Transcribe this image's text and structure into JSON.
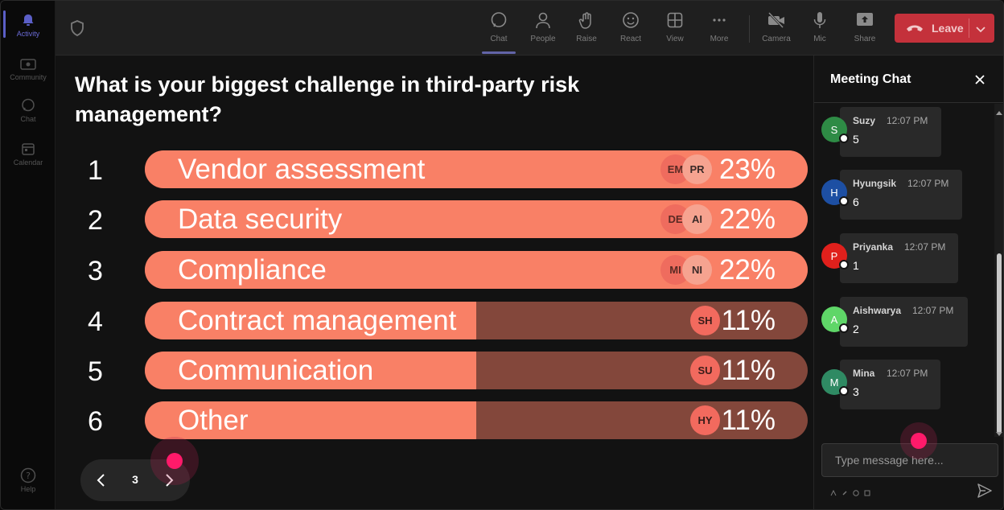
{
  "rail": {
    "items": [
      {
        "label": "Activity",
        "icon": "bell-icon",
        "active": true
      },
      {
        "label": "Community",
        "icon": "community-icon"
      },
      {
        "label": "Chat",
        "icon": "chat-bubble-icon"
      },
      {
        "label": "Calendar",
        "icon": "calendar-icon"
      }
    ],
    "help": {
      "label": "Help",
      "icon": "help-icon"
    }
  },
  "toolbar": {
    "buttons": [
      {
        "label": "Chat",
        "icon": "chat-icon",
        "active": true
      },
      {
        "label": "People",
        "icon": "people-icon"
      },
      {
        "label": "Raise",
        "icon": "raise-hand-icon"
      },
      {
        "label": "React",
        "icon": "smiley-icon"
      },
      {
        "label": "View",
        "icon": "grid-icon"
      },
      {
        "label": "More",
        "icon": "more-icon"
      },
      {
        "label": "Camera",
        "icon": "camera-off-icon"
      },
      {
        "label": "Mic",
        "icon": "mic-icon"
      },
      {
        "label": "Share",
        "icon": "share-icon"
      }
    ],
    "leave_label": "Leave"
  },
  "poll": {
    "question": "What is your biggest challenge in third-party risk management?",
    "options": [
      {
        "num": "1",
        "label": "Vendor assessment",
        "percent_label": "23%",
        "fill": 1.0,
        "avatars": [
          "EM",
          "PR"
        ]
      },
      {
        "num": "2",
        "label": "Data security",
        "percent_label": "22%",
        "fill": 1.0,
        "avatars": [
          "DE",
          "AI"
        ]
      },
      {
        "num": "3",
        "label": "Compliance",
        "percent_label": "22%",
        "fill": 1.0,
        "avatars": [
          "MI",
          "NI"
        ]
      },
      {
        "num": "4",
        "label": "Contract management",
        "percent_label": "11%",
        "fill": 0.5,
        "avatars": [
          "SH"
        ]
      },
      {
        "num": "5",
        "label": "Communication",
        "percent_label": "11%",
        "fill": 0.5,
        "avatars": [
          "SU"
        ]
      },
      {
        "num": "6",
        "label": "Other",
        "percent_label": "11%",
        "fill": 0.5,
        "avatars": [
          "HY"
        ]
      }
    ],
    "page": "3"
  },
  "chat": {
    "title": "Meeting Chat",
    "messages": [
      {
        "initial": "S",
        "name": "Suzy",
        "time": "12:07 PM",
        "text": "5",
        "color": "#2e8b45"
      },
      {
        "initial": "H",
        "name": "Hyungsik",
        "time": "12:07 PM",
        "text": "6",
        "color": "#1d4fa3"
      },
      {
        "initial": "P",
        "name": "Priyanka",
        "time": "12:07 PM",
        "text": "1",
        "color": "#e0201c"
      },
      {
        "initial": "A",
        "name": "Aishwarya",
        "time": "12:07 PM",
        "text": "2",
        "color": "#5fd668"
      },
      {
        "initial": "M",
        "name": "Mina",
        "time": "12:07 PM",
        "text": "3",
        "color": "#2f8a63"
      }
    ],
    "input_placeholder": "Type message here..."
  },
  "colors": {
    "accent": "#5b5fc7",
    "leave": "#c4313b",
    "bar_fill": "#f98066",
    "bar_track": "#83473b",
    "cursor": "#ff1a6a"
  }
}
